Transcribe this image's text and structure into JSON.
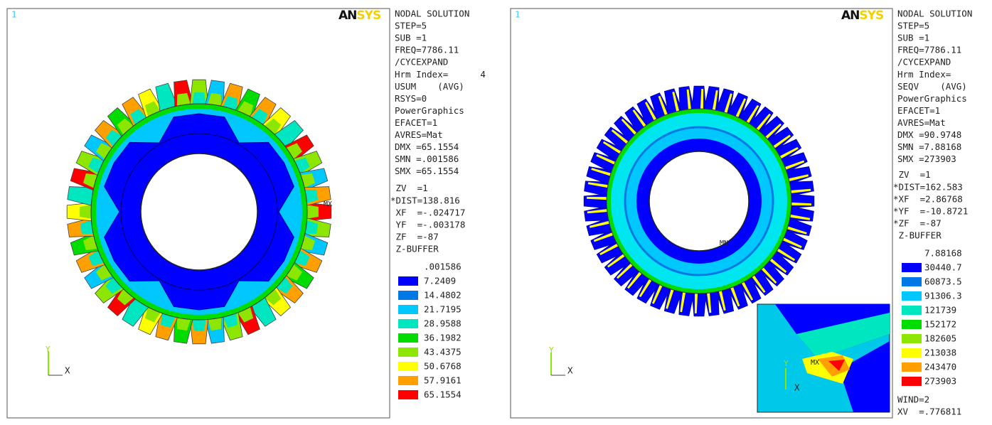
{
  "panels": [
    {
      "window_number": "1",
      "logo": "ANSYS",
      "info_lines": [
        "NODAL SOLUTION",
        "STEP=5",
        "SUB =1",
        "FREQ=7786.11",
        "/CYCEXPAND",
        "Hrm Index=      4",
        "USUM    (AVG)",
        "RSYS=0",
        "PowerGraphics",
        "EFACET=1",
        "AVRES=Mat",
        "DMX =65.1554",
        "SMN =.001586",
        "SMX =65.1554"
      ],
      "view_lines": [
        " ZV  =1",
        "*DIST=138.816",
        " XF  =-.024717",
        " YF  =-.003178",
        " ZF  =-87",
        " Z-BUFFER"
      ],
      "legend": {
        "labels": [
          ".001586",
          "7.2409",
          "14.4802",
          "21.7195",
          "28.9588",
          "36.1982",
          "43.4375",
          "50.6768",
          "57.9161",
          "65.1554"
        ],
        "colors": [
          "#0000ff",
          "#0078e6",
          "#00c8ff",
          "#00e6c0",
          "#00dc00",
          "#8ce600",
          "#ffff00",
          "#ffa000",
          "#ff0000"
        ]
      },
      "markers": [
        "MX"
      ],
      "triad": {
        "y": "Y",
        "x": "X"
      }
    },
    {
      "window_number": "1",
      "logo": "ANSYS",
      "info_lines": [
        "NODAL SOLUTION",
        "STEP=5",
        "SUB =1",
        "FREQ=7786.11",
        "/CYCEXPAND",
        "Hrm Index=",
        "SEQV    (AVG)",
        "PowerGraphics",
        "EFACET=1",
        "AVRES=Mat",
        "DMX =90.9748",
        "SMN =7.88168",
        "SMX =273903"
      ],
      "view_lines": [
        " ZV  =1",
        "*DIST=162.583",
        "*XF  =2.86768",
        "*YF  =-10.8721",
        "*ZF  =-87",
        " Z-BUFFER"
      ],
      "legend": {
        "labels": [
          "7.88168",
          "30440.7",
          "60873.5",
          "91306.3",
          "121739",
          "152172",
          "182605",
          "213038",
          "243470",
          "273903"
        ],
        "colors": [
          "#0000ff",
          "#0078e6",
          "#00c8ff",
          "#00e6c0",
          "#00dc00",
          "#8ce600",
          "#ffff00",
          "#ffa000",
          "#ff0000"
        ]
      },
      "footer_lines": [
        "WIND=2",
        "XV  =.776811"
      ],
      "markers": [
        "MN",
        "MX"
      ],
      "triad": {
        "y": "Y",
        "x": "X"
      }
    }
  ]
}
